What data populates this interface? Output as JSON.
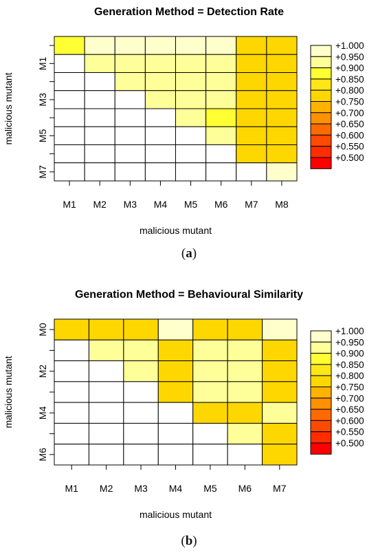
{
  "legend_levels": [
    "+1.000",
    "+0.950",
    "+0.900",
    "+0.850",
    "+0.800",
    "+0.750",
    "+0.700",
    "+0.650",
    "+0.600",
    "+0.550",
    "+0.500"
  ],
  "legend_colors": [
    "#FFFFCC",
    "#FFFF99",
    "#FFFF33",
    "#FFE619",
    "#FFD700",
    "#FFB300",
    "#FF9100",
    "#FF6A00",
    "#FF4A00",
    "#FF2D00",
    "#FF0000"
  ],
  "chart_data": [
    {
      "type": "heatmap",
      "title": "Generation Method = Detection Rate",
      "xlabel": "malicious mutant",
      "ylabel": "malicious mutant",
      "caption": "a",
      "x_labels": [
        "M1",
        "M2",
        "M3",
        "M4",
        "M5",
        "M6",
        "M7",
        "M8"
      ],
      "y_tick_labels": [
        "M1",
        "M3",
        "M5",
        "M7"
      ],
      "values": [
        [
          0.92,
          0.98,
          0.98,
          0.98,
          0.98,
          0.98,
          0.82,
          0.82
        ],
        [
          null,
          0.97,
          0.97,
          0.93,
          0.93,
          0.97,
          0.82,
          0.82
        ],
        [
          null,
          null,
          0.97,
          0.97,
          0.97,
          0.97,
          0.82,
          0.82
        ],
        [
          null,
          null,
          null,
          0.97,
          0.97,
          0.97,
          0.82,
          0.82
        ],
        [
          null,
          null,
          null,
          null,
          0.97,
          0.92,
          0.82,
          0.82
        ],
        [
          null,
          null,
          null,
          null,
          null,
          0.97,
          0.82,
          0.82
        ],
        [
          null,
          null,
          null,
          null,
          null,
          null,
          0.82,
          0.82
        ],
        [
          null,
          null,
          null,
          null,
          null,
          null,
          null,
          0.98
        ]
      ]
    },
    {
      "type": "heatmap",
      "title": "Generation Method = Behavioural Similarity",
      "xlabel": "malicious mutant",
      "ylabel": "malicious mutant",
      "caption": "b",
      "x_labels": [
        "M1",
        "M2",
        "M3",
        "M4",
        "M5",
        "M6",
        "M7"
      ],
      "y_tick_labels": [
        "M0",
        "M2",
        "M4",
        "M6"
      ],
      "values": [
        [
          0.82,
          0.82,
          0.82,
          0.98,
          0.82,
          0.82,
          0.98
        ],
        [
          null,
          0.97,
          0.97,
          0.82,
          0.97,
          0.97,
          0.82
        ],
        [
          null,
          null,
          0.97,
          0.82,
          0.97,
          0.97,
          0.82
        ],
        [
          null,
          null,
          null,
          0.82,
          0.97,
          0.97,
          0.82
        ],
        [
          null,
          null,
          null,
          null,
          0.82,
          0.82,
          0.97
        ],
        [
          null,
          null,
          null,
          null,
          null,
          0.97,
          0.82
        ],
        [
          null,
          null,
          null,
          null,
          null,
          null,
          0.82
        ]
      ]
    }
  ]
}
